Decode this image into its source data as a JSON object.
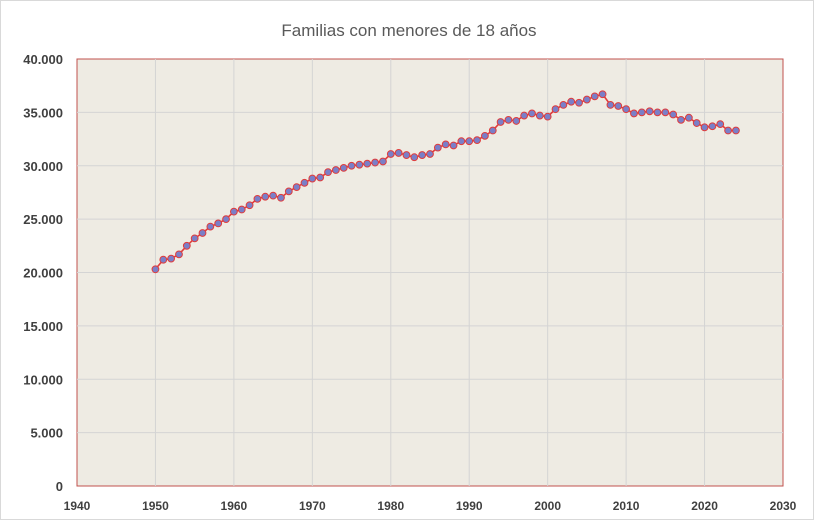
{
  "chart_data": {
    "type": "line",
    "title": "Familias con menores de 18 años",
    "xlabel": "",
    "ylabel": "",
    "xlim": [
      1940,
      2030
    ],
    "ylim": [
      0,
      40000
    ],
    "x_ticks": [
      1940,
      1950,
      1960,
      1970,
      1980,
      1990,
      2000,
      2010,
      2020,
      2030
    ],
    "x_tick_labels": [
      "1940",
      "1950",
      "1960",
      "1970",
      "1980",
      "1990",
      "2000",
      "2010",
      "2020",
      "2030"
    ],
    "y_ticks": [
      0,
      5000,
      10000,
      15000,
      20000,
      25000,
      30000,
      35000,
      40000
    ],
    "y_tick_labels": [
      "0",
      "5.000",
      "10.000",
      "15.000",
      "20.000",
      "25.000",
      "30.000",
      "35.000",
      "40.000"
    ],
    "grid": true,
    "legend": "none",
    "colors": {
      "line": "#e03c3c",
      "marker_fill": "#7a7fc8",
      "marker_edge": "#e03c3c",
      "plot_bg": "#eeebe3",
      "plot_border": "#c0504d",
      "grid": "#d4d4d4"
    },
    "series": [
      {
        "x": [
          1950,
          1951,
          1952,
          1953,
          1954,
          1955,
          1956,
          1957,
          1958,
          1959,
          1960,
          1961,
          1962,
          1963,
          1964,
          1965,
          1966,
          1967,
          1968,
          1969,
          1970,
          1971,
          1972,
          1973,
          1974,
          1975,
          1976,
          1977,
          1978,
          1979,
          1980,
          1981,
          1982,
          1983,
          1984,
          1985,
          1986,
          1987,
          1988,
          1989,
          1990,
          1991,
          1992,
          1993,
          1994,
          1995,
          1996,
          1997,
          1998,
          1999,
          2000,
          2001,
          2002,
          2003,
          2004,
          2005,
          2006,
          2007,
          2008,
          2009,
          2010,
          2011,
          2012,
          2013,
          2014,
          2015,
          2016,
          2017,
          2018,
          2019,
          2020,
          2021,
          2022,
          2023,
          2024
        ],
        "values": [
          20300,
          21200,
          21300,
          21700,
          22500,
          23200,
          23700,
          24300,
          24600,
          25000,
          25700,
          25900,
          26300,
          26900,
          27100,
          27200,
          27000,
          27600,
          28000,
          28400,
          28800,
          28900,
          29400,
          29600,
          29800,
          30000,
          30100,
          30200,
          30300,
          30400,
          31100,
          31200,
          31000,
          30800,
          31000,
          31100,
          31700,
          32000,
          31900,
          32300,
          32300,
          32400,
          32800,
          33300,
          34100,
          34300,
          34200,
          34700,
          34900,
          34700,
          34600,
          35300,
          35700,
          36000,
          35900,
          36200,
          36500,
          36700,
          35700,
          35600,
          35300,
          34900,
          35000,
          35100,
          35000,
          35000,
          34800,
          34300,
          34500,
          34000,
          33600,
          33700,
          33900,
          33300,
          33300
        ]
      }
    ]
  }
}
